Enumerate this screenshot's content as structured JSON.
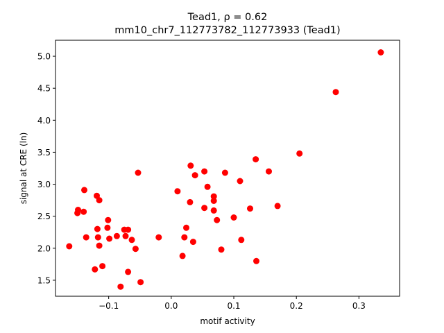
{
  "chart_data": {
    "type": "scatter",
    "title_line1": "Tead1, ρ = 0.62",
    "title_line2": "mm10_chr7_112773782_112773933 (Tead1)",
    "xlabel": "motif activity",
    "ylabel": "signal at CRE (ln)",
    "xlim": [
      -0.185,
      0.365
    ],
    "ylim": [
      1.25,
      5.25
    ],
    "x_ticks": [
      -0.1,
      0.0,
      0.1,
      0.2,
      0.3
    ],
    "x_tick_labels": [
      "−0.1",
      "0.0",
      "0.1",
      "0.2",
      "0.3"
    ],
    "y_ticks": [
      1.5,
      2.0,
      2.5,
      3.0,
      3.5,
      4.0,
      4.5,
      5.0
    ],
    "y_tick_labels": [
      "1.5",
      "2.0",
      "2.5",
      "3.0",
      "3.5",
      "4.0",
      "4.5",
      "5.0"
    ],
    "marker_color": "#ff0000",
    "grid": false,
    "points": [
      {
        "x": -0.163,
        "y": 2.03
      },
      {
        "x": -0.15,
        "y": 2.55
      },
      {
        "x": -0.149,
        "y": 2.6
      },
      {
        "x": -0.14,
        "y": 2.57
      },
      {
        "x": -0.139,
        "y": 2.91
      },
      {
        "x": -0.136,
        "y": 2.17
      },
      {
        "x": -0.122,
        "y": 1.67
      },
      {
        "x": -0.119,
        "y": 2.82
      },
      {
        "x": -0.118,
        "y": 2.3
      },
      {
        "x": -0.117,
        "y": 2.17
      },
      {
        "x": -0.115,
        "y": 2.75
      },
      {
        "x": -0.115,
        "y": 2.04
      },
      {
        "x": -0.11,
        "y": 1.72
      },
      {
        "x": -0.102,
        "y": 2.32
      },
      {
        "x": -0.101,
        "y": 2.44
      },
      {
        "x": -0.099,
        "y": 2.15
      },
      {
        "x": -0.087,
        "y": 2.19
      },
      {
        "x": -0.081,
        "y": 1.4
      },
      {
        "x": -0.075,
        "y": 2.29
      },
      {
        "x": -0.073,
        "y": 2.19
      },
      {
        "x": -0.069,
        "y": 2.29
      },
      {
        "x": -0.069,
        "y": 1.63
      },
      {
        "x": -0.063,
        "y": 2.13
      },
      {
        "x": -0.057,
        "y": 1.99
      },
      {
        "x": -0.053,
        "y": 3.18
      },
      {
        "x": -0.049,
        "y": 1.47
      },
      {
        "x": -0.02,
        "y": 2.17
      },
      {
        "x": 0.01,
        "y": 2.89
      },
      {
        "x": 0.018,
        "y": 1.88
      },
      {
        "x": 0.021,
        "y": 2.17
      },
      {
        "x": 0.024,
        "y": 2.32
      },
      {
        "x": 0.03,
        "y": 2.72
      },
      {
        "x": 0.031,
        "y": 3.29
      },
      {
        "x": 0.035,
        "y": 2.1
      },
      {
        "x": 0.038,
        "y": 3.14
      },
      {
        "x": 0.053,
        "y": 2.63
      },
      {
        "x": 0.053,
        "y": 3.2
      },
      {
        "x": 0.058,
        "y": 2.96
      },
      {
        "x": 0.068,
        "y": 2.81
      },
      {
        "x": 0.068,
        "y": 2.74
      },
      {
        "x": 0.068,
        "y": 2.59
      },
      {
        "x": 0.073,
        "y": 2.44
      },
      {
        "x": 0.08,
        "y": 1.98
      },
      {
        "x": 0.086,
        "y": 3.18
      },
      {
        "x": 0.1,
        "y": 2.48
      },
      {
        "x": 0.11,
        "y": 3.05
      },
      {
        "x": 0.112,
        "y": 2.13
      },
      {
        "x": 0.126,
        "y": 2.62
      },
      {
        "x": 0.135,
        "y": 3.39
      },
      {
        "x": 0.136,
        "y": 1.8
      },
      {
        "x": 0.156,
        "y": 3.2
      },
      {
        "x": 0.17,
        "y": 2.66
      },
      {
        "x": 0.205,
        "y": 3.48
      },
      {
        "x": 0.263,
        "y": 4.44
      },
      {
        "x": 0.335,
        "y": 5.06
      }
    ]
  }
}
